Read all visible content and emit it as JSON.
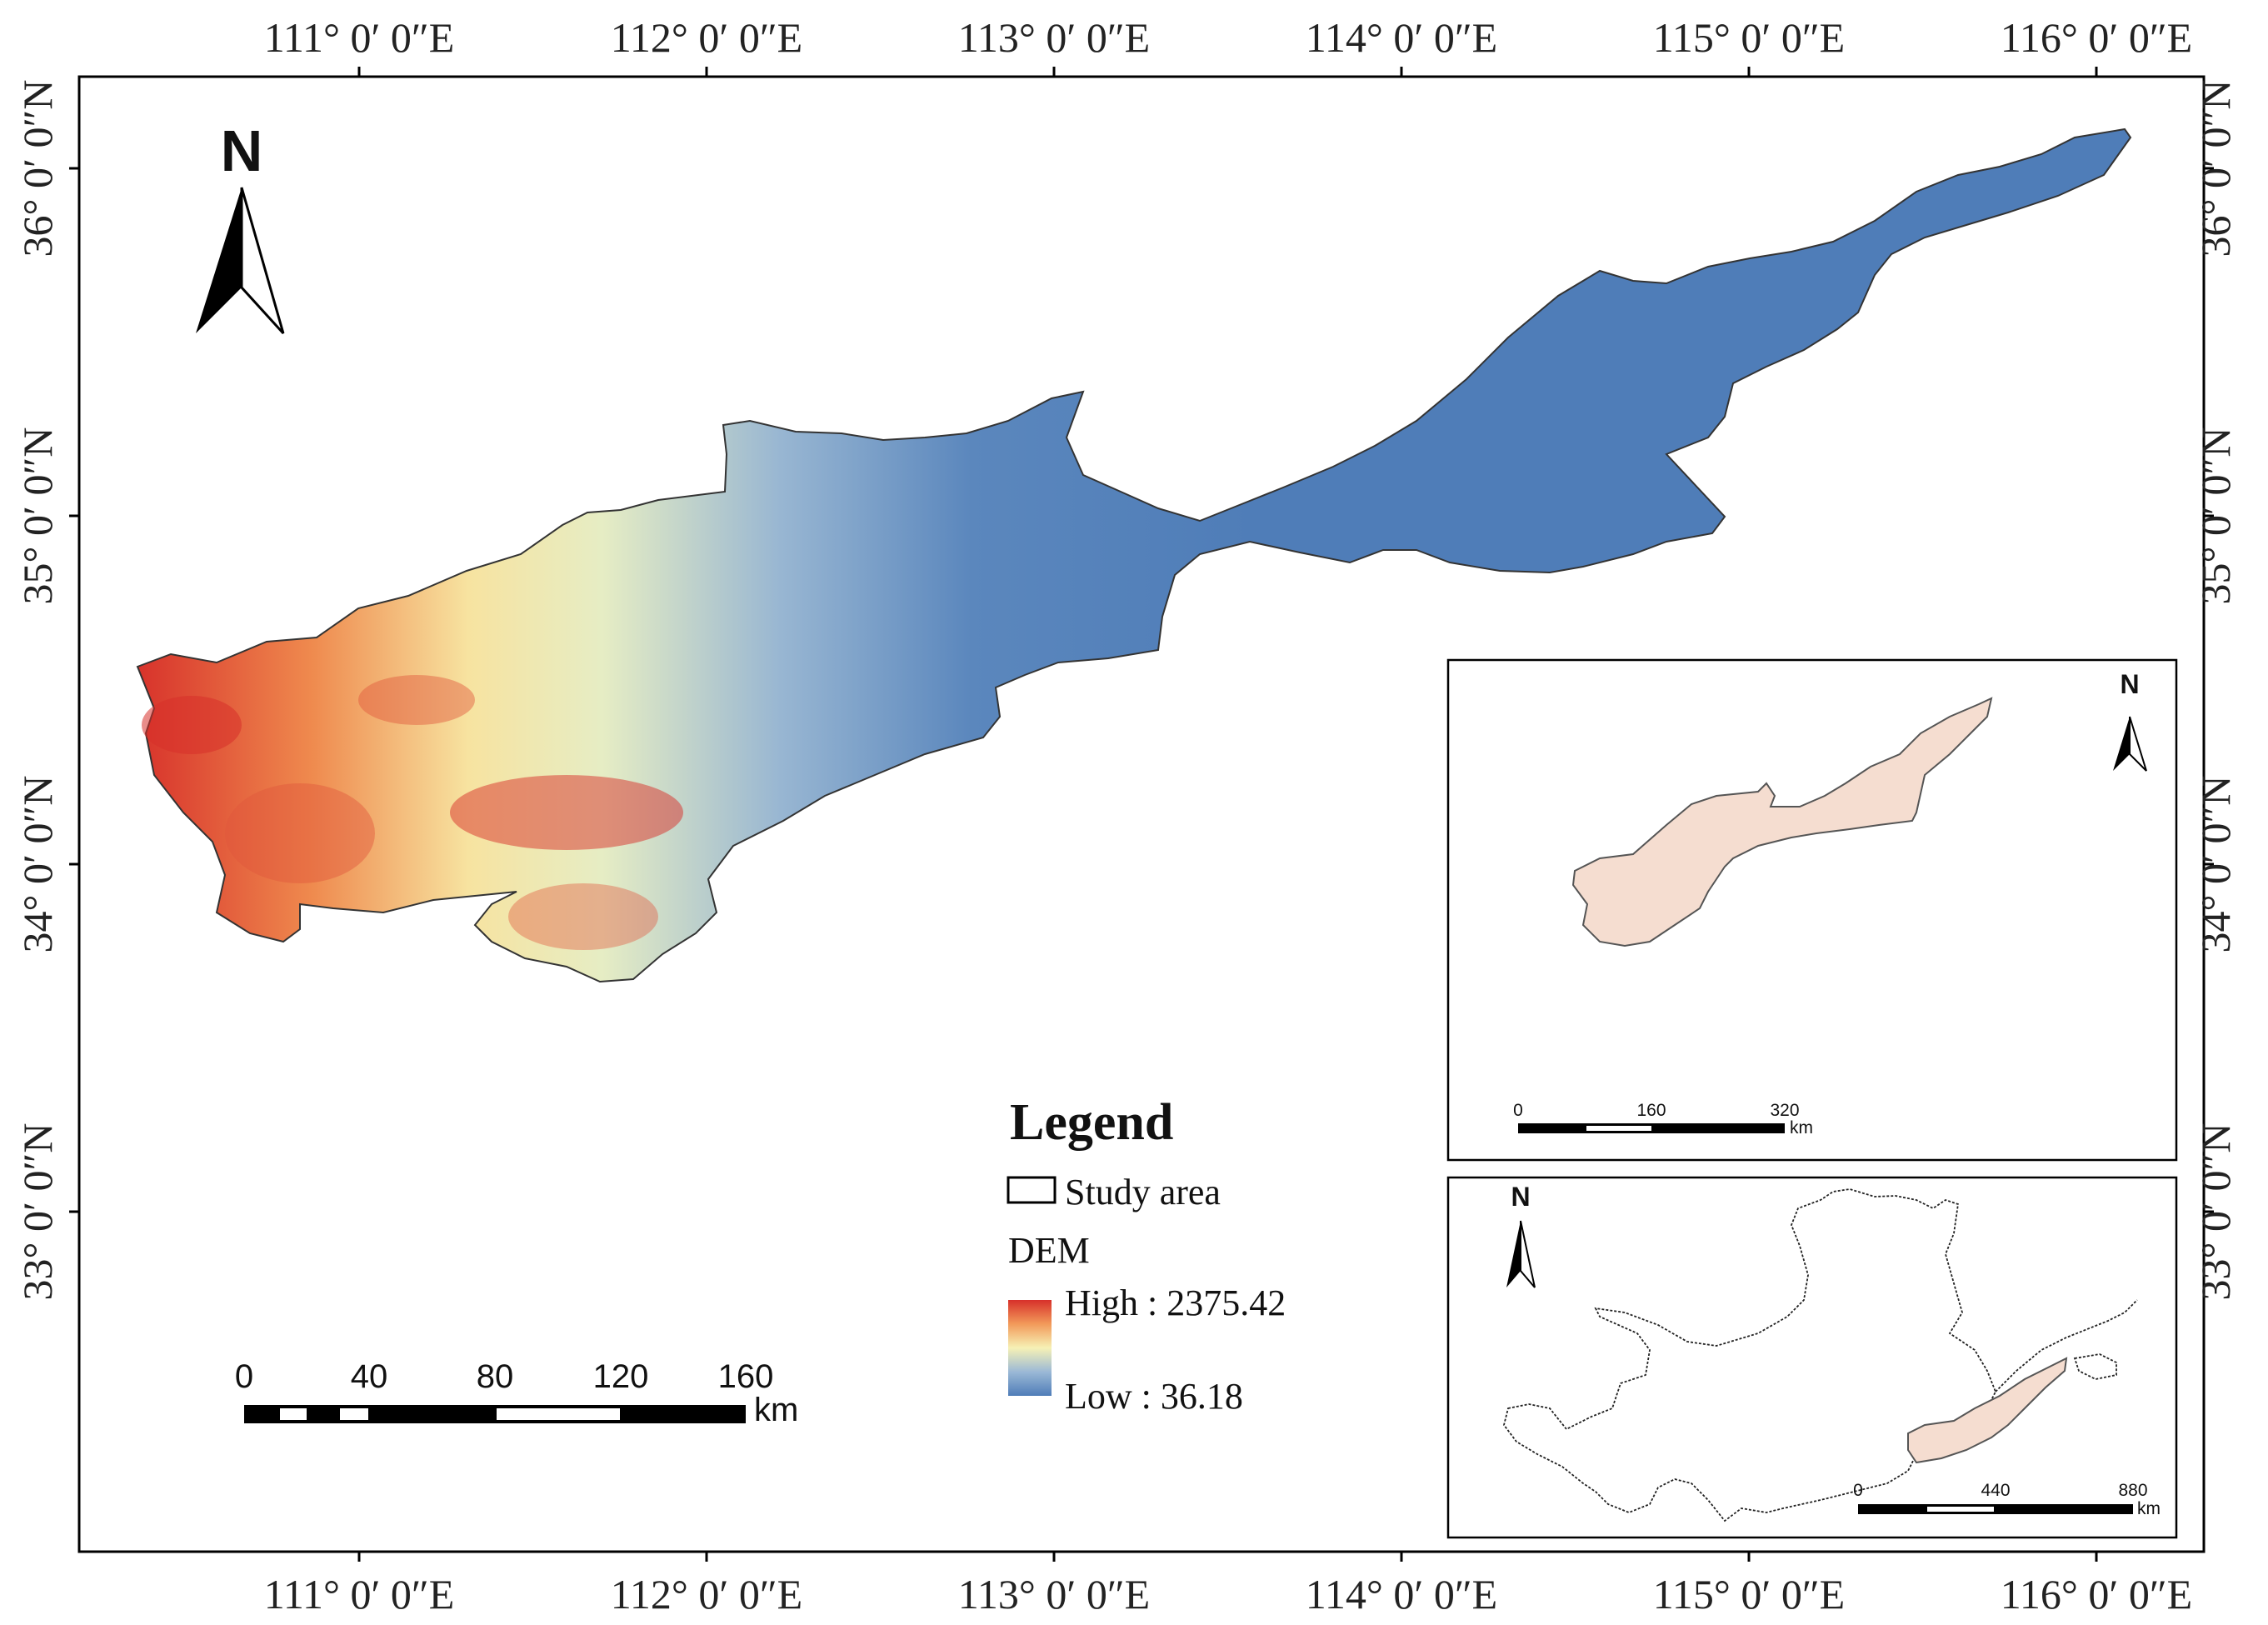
{
  "map": {
    "longitude_labels": [
      "111° 0′ 0″E",
      "112° 0′ 0″E",
      "113° 0′ 0″E",
      "114° 0′ 0″E",
      "115° 0′ 0″E",
      "116° 0′ 0″E"
    ],
    "latitude_labels": [
      "36° 0′ 0″N",
      "35° 0′ 0″N",
      "34° 0′ 0″N",
      "33° 0′ 0″N"
    ],
    "north_label": "N",
    "legend": {
      "title": "Legend",
      "study_area": "Study area",
      "dem_label": "DEM",
      "high": "High : 2375.42",
      "low": "Low : 36.18"
    },
    "scale_bar": {
      "labels": [
        "0",
        "40",
        "80",
        "120",
        "160"
      ],
      "unit": "km"
    },
    "inset_regional": {
      "north_label": "N",
      "scale_labels": [
        "0",
        "160",
        "320"
      ],
      "unit": "km"
    },
    "inset_basin": {
      "north_label": "N",
      "scale_labels": [
        "0",
        "440",
        "880"
      ],
      "unit": "km"
    },
    "colors": {
      "dem_high": "#d7302a",
      "dem_mid": "#f4f2b6",
      "dem_low": "#4f7db8",
      "study_area_fill": "#f5ddd0"
    }
  }
}
